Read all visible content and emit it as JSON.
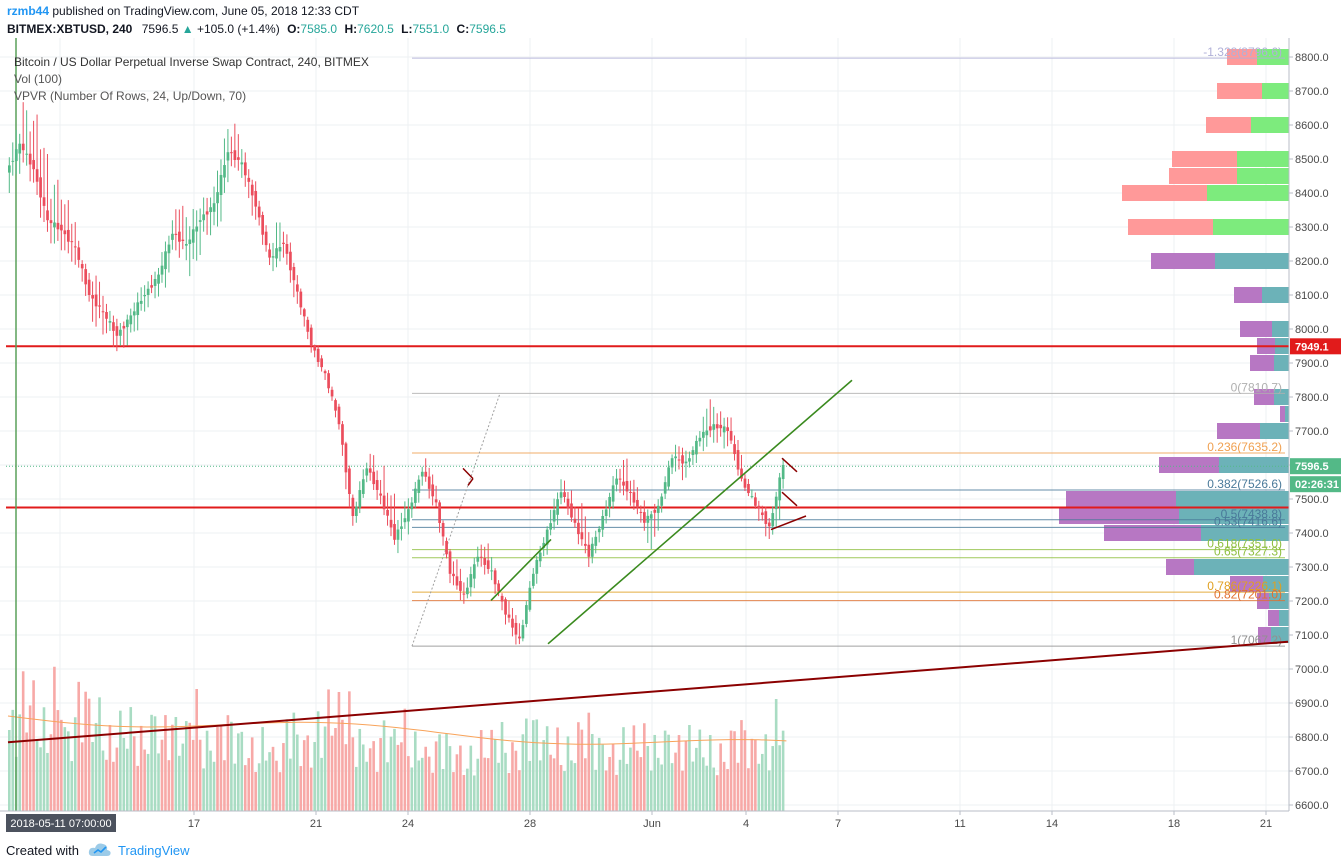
{
  "header": {
    "user": "rzmb44",
    "published": "published on TradingView.com, June 05, 2018 12:33 CDT",
    "symbol": "BITMEX:XBTUSD, 240",
    "last": "7596.5",
    "change": "+105.0 (+1.4%)",
    "o_label": "O:",
    "o_value": "7585.0",
    "h_label": "H:",
    "h_value": "7620.5",
    "l_label": "L:",
    "l_value": "7551.0",
    "c_label": "C:",
    "c_value": "7596.5"
  },
  "legend": {
    "title": "Bitcoin / US Dollar Perpetual Inverse Swap Contract, 240, BITMEX",
    "vol": "Vol (100)",
    "vpvr": "VPVR (Number Of Rows, 24, Up/Down, 70)"
  },
  "footer": {
    "created": "Created with",
    "brand": "TradingView"
  },
  "colors": {
    "up": "#53b987",
    "down": "#eb4d5c",
    "vol_up": "#a9dcc3",
    "vol_down": "#f7a9a7",
    "vp_up": "#7deb7d",
    "vp_down": "#ff9999",
    "vp_up_va": "#6cb2b8",
    "vp_down_va": "#b777c3",
    "hline": "#e11b1b",
    "trend": "#3a8a1e",
    "support": "#8b0000",
    "price_tag_red": "#e11b1b",
    "price_tag_last": "#53b987",
    "ma": "#f8a35a"
  },
  "chart_data": {
    "type": "candlestick",
    "y_axis": {
      "range": [
        6545,
        8840
      ],
      "ticks": [
        "8800.0",
        "8700.0",
        "8600.0",
        "8500.0",
        "8400.0",
        "8300.0",
        "8200.0",
        "8100.0",
        "8000.0",
        "7900.0",
        "7800.0",
        "7700.0",
        "7600.0",
        "7500.0",
        "7400.0",
        "7300.0",
        "7200.0",
        "7100.0",
        "7000.0",
        "6900.0",
        "6800.0",
        "6700.0",
        "6600.0"
      ]
    },
    "x_axis": {
      "labels": [
        {
          "label": "2018-05-11 07:00:00",
          "x": "2018-05-11 07:00"
        },
        {
          "label": "17",
          "x": "2018-05-17"
        },
        {
          "label": "21",
          "x": "2018-05-21"
        },
        {
          "label": "24",
          "x": "2018-05-24"
        },
        {
          "label": "28",
          "x": "2018-05-28"
        },
        {
          "label": "Jun",
          "x": "2018-06-01"
        },
        {
          "label": "4",
          "x": "2018-06-04"
        },
        {
          "label": "7",
          "x": "2018-06-07"
        },
        {
          "label": "11",
          "x": "2018-06-11"
        },
        {
          "label": "14",
          "x": "2018-06-14"
        },
        {
          "label": "18",
          "x": "2018-06-18"
        },
        {
          "label": "21",
          "x": "2018-06-21"
        }
      ]
    },
    "price_tags": [
      {
        "label": "7949.1",
        "value": 7949.1,
        "kind": "hline"
      },
      {
        "label": "7596.5",
        "value": 7596.5,
        "kind": "last"
      },
      {
        "label": "02:26:31",
        "value": 7545,
        "kind": "countdown"
      }
    ],
    "horizontal_lines": [
      7949.1,
      7475
    ],
    "last_price": 7596.5,
    "fib": [
      {
        "label": "-1.328(8796.6)",
        "value": 8796.6,
        "color": "#b0b0d8"
      },
      {
        "label": "0(7810.7)",
        "value": 7810.7,
        "color": "#b0b0b0"
      },
      {
        "label": "0.236(7635.2)",
        "value": 7635.2,
        "color": "#f0a050"
      },
      {
        "label": "0.382(7526.6)",
        "value": 7526.6,
        "color": "#4a7a9a"
      },
      {
        "label": "0.5(7438.8)",
        "value": 7438.8,
        "color": "#4a7a9a"
      },
      {
        "label": "0.53(7416.6)",
        "value": 7416.6,
        "color": "#4a7a9a"
      },
      {
        "label": "0.618(7351.0)",
        "value": 7351.0,
        "color": "#8fbf3f"
      },
      {
        "label": "0.65(7327.3)",
        "value": 7327.3,
        "color": "#8fbf3f"
      },
      {
        "label": "0.786(7226.1)",
        "value": 7226.1,
        "color": "#e0a020"
      },
      {
        "label": "0.82(7201.0)",
        "value": 7201.0,
        "color": "#e07030"
      },
      {
        "label": "1(7067.2)",
        "value": 7067.2,
        "color": "#909090"
      }
    ],
    "trendlines": [
      {
        "name": "support",
        "from": [
          8.0,
          6784.5
        ],
        "to": [
          1288.0,
          7080.3
        ]
      },
      {
        "name": "channel-low",
        "from": [
          548.0,
          7074.1
        ],
        "to": [
          852.0,
          7849.3
        ]
      },
      {
        "name": "channel-small",
        "from": [
          491.0,
          7201.8
        ],
        "to": [
          551.0,
          7381.1
        ]
      }
    ],
    "candles": [
      [
        8460,
        8605,
        8400,
        8545
      ],
      [
        8545,
        8680,
        8420,
        8470
      ],
      [
        8470,
        8640,
        8260,
        8320
      ],
      [
        8320,
        8450,
        8230,
        8290
      ],
      [
        8290,
        8380,
        8180,
        8240
      ],
      [
        8240,
        8260,
        8060,
        8100
      ],
      [
        8100,
        8170,
        7980,
        8050
      ],
      [
        8050,
        8080,
        7930,
        7980
      ],
      [
        7980,
        8060,
        7920,
        8040
      ],
      [
        8040,
        8140,
        7990,
        8100
      ],
      [
        8100,
        8190,
        8060,
        8160
      ],
      [
        8160,
        8320,
        8100,
        8280
      ],
      [
        8280,
        8380,
        8200,
        8250
      ],
      [
        8250,
        8380,
        8150,
        8320
      ],
      [
        8320,
        8420,
        8250,
        8370
      ],
      [
        8370,
        8600,
        8290,
        8520
      ],
      [
        8520,
        8600,
        8450,
        8490
      ],
      [
        8490,
        8520,
        8300,
        8360
      ],
      [
        8360,
        8380,
        8180,
        8210
      ],
      [
        8210,
        8330,
        8170,
        8250
      ],
      [
        8250,
        8280,
        8060,
        8110
      ],
      [
        8110,
        8120,
        7920,
        7950
      ],
      [
        7950,
        7960,
        7850,
        7870
      ],
      [
        7870,
        7880,
        7700,
        7720
      ],
      [
        7720,
        7730,
        7400,
        7450
      ],
      [
        7450,
        7620,
        7430,
        7590
      ],
      [
        7590,
        7640,
        7480,
        7510
      ],
      [
        7510,
        7600,
        7350,
        7380
      ],
      [
        7380,
        7520,
        7340,
        7470
      ],
      [
        7470,
        7600,
        7440,
        7580
      ],
      [
        7580,
        7620,
        7460,
        7490
      ],
      [
        7490,
        7500,
        7250,
        7280
      ],
      [
        7280,
        7330,
        7190,
        7220
      ],
      [
        7220,
        7360,
        7190,
        7330
      ],
      [
        7330,
        7380,
        7260,
        7290
      ],
      [
        7290,
        7300,
        7130,
        7160
      ],
      [
        7160,
        7200,
        7060,
        7090
      ],
      [
        7090,
        7300,
        7080,
        7280
      ],
      [
        7280,
        7430,
        7250,
        7410
      ],
      [
        7410,
        7560,
        7380,
        7520
      ],
      [
        7520,
        7560,
        7410,
        7430
      ],
      [
        7430,
        7520,
        7300,
        7330
      ],
      [
        7330,
        7470,
        7300,
        7450
      ],
      [
        7450,
        7590,
        7420,
        7560
      ],
      [
        7560,
        7630,
        7480,
        7520
      ],
      [
        7520,
        7560,
        7400,
        7430
      ],
      [
        7430,
        7500,
        7340,
        7480
      ],
      [
        7480,
        7640,
        7460,
        7620
      ],
      [
        7620,
        7660,
        7560,
        7610
      ],
      [
        7610,
        7700,
        7580,
        7680
      ],
      [
        7680,
        7800,
        7640,
        7720
      ],
      [
        7720,
        7760,
        7650,
        7700
      ],
      [
        7700,
        7740,
        7540,
        7560
      ],
      [
        7560,
        7580,
        7470,
        7480
      ],
      [
        7480,
        7500,
        7380,
        7420
      ],
      [
        7420,
        7620,
        7360,
        7600
      ]
    ],
    "volume_range": [
      0,
      800
    ],
    "volumes": [
      [
        540,
        "u"
      ],
      [
        700,
        "d"
      ],
      [
        520,
        "u"
      ],
      [
        740,
        "d"
      ],
      [
        480,
        "u"
      ],
      [
        680,
        "d"
      ],
      [
        600,
        "u"
      ],
      [
        430,
        "d"
      ],
      [
        520,
        "u"
      ],
      [
        440,
        "d"
      ],
      [
        560,
        "u"
      ],
      [
        500,
        "d"
      ],
      [
        470,
        "u"
      ],
      [
        610,
        "d"
      ],
      [
        420,
        "u"
      ],
      [
        500,
        "d"
      ],
      [
        460,
        "u"
      ],
      [
        380,
        "d"
      ],
      [
        420,
        "u"
      ],
      [
        340,
        "d"
      ],
      [
        520,
        "u"
      ],
      [
        430,
        "d"
      ],
      [
        510,
        "u"
      ],
      [
        610,
        "d"
      ],
      [
        600,
        "d"
      ],
      [
        440,
        "u"
      ],
      [
        390,
        "d"
      ],
      [
        460,
        "u"
      ],
      [
        520,
        "d"
      ],
      [
        400,
        "u"
      ],
      [
        350,
        "d"
      ],
      [
        420,
        "u"
      ],
      [
        360,
        "d"
      ],
      [
        330,
        "u"
      ],
      [
        410,
        "d"
      ],
      [
        450,
        "u"
      ],
      [
        380,
        "d"
      ],
      [
        500,
        "u"
      ],
      [
        460,
        "u"
      ],
      [
        420,
        "d"
      ],
      [
        380,
        "u"
      ],
      [
        500,
        "d"
      ],
      [
        410,
        "u"
      ],
      [
        360,
        "d"
      ],
      [
        420,
        "u"
      ],
      [
        440,
        "d"
      ],
      [
        390,
        "u"
      ],
      [
        460,
        "u"
      ],
      [
        400,
        "d"
      ],
      [
        430,
        "u"
      ],
      [
        380,
        "u"
      ],
      [
        350,
        "d"
      ],
      [
        470,
        "d"
      ],
      [
        420,
        "d"
      ],
      [
        400,
        "u"
      ],
      [
        560,
        "u"
      ]
    ],
    "volume_profile": [
      {
        "price": 8800,
        "up": 32,
        "down": 30,
        "va": false
      },
      {
        "price": 8700,
        "up": 27,
        "down": 45,
        "va": false
      },
      {
        "price": 8600,
        "up": 38,
        "down": 45,
        "va": false
      },
      {
        "price": 8500,
        "up": 52,
        "down": 65,
        "va": false
      },
      {
        "price": 8450,
        "up": 52,
        "down": 68,
        "va": false
      },
      {
        "price": 8400,
        "up": 82,
        "down": 85,
        "va": false
      },
      {
        "price": 8300,
        "up": 76,
        "down": 85,
        "va": false
      },
      {
        "price": 8200,
        "up": 74,
        "down": 64,
        "va": true
      },
      {
        "price": 8100,
        "up": 27,
        "down": 28,
        "va": true
      },
      {
        "price": 8000,
        "up": 17,
        "down": 32,
        "va": true
      },
      {
        "price": 7950,
        "up": 14,
        "down": 18,
        "va": true
      },
      {
        "price": 7900,
        "up": 15,
        "down": 24,
        "va": true
      },
      {
        "price": 7800,
        "up": 15,
        "down": 20,
        "va": true
      },
      {
        "price": 7750,
        "up": 4,
        "down": 5,
        "va": true
      },
      {
        "price": 7700,
        "up": 29,
        "down": 43,
        "va": true
      },
      {
        "price": 7600,
        "up": 70,
        "down": 60,
        "va": true
      },
      {
        "price": 7500,
        "up": 113,
        "down": 110,
        "va": true
      },
      {
        "price": 7450,
        "up": 110,
        "down": 120,
        "va": true
      },
      {
        "price": 7400,
        "up": 88,
        "down": 97,
        "va": true
      },
      {
        "price": 7300,
        "up": 95,
        "down": 28,
        "va": true
      },
      {
        "price": 7250,
        "up": 26,
        "down": 33,
        "va": true
      },
      {
        "price": 7200,
        "up": 20,
        "down": 12,
        "va": true
      },
      {
        "price": 7150,
        "up": 10,
        "down": 11,
        "va": true
      },
      {
        "price": 7100,
        "up": 18,
        "down": 13,
        "va": true
      }
    ]
  }
}
